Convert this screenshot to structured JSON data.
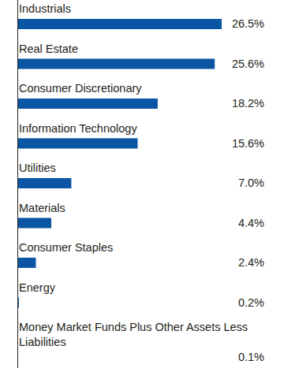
{
  "chart_data": {
    "type": "bar",
    "orientation": "horizontal",
    "categories": [
      "Industrials",
      "Real Estate",
      "Consumer Discretionary",
      "Information Technology",
      "Utilities",
      "Materials",
      "Consumer Staples",
      "Energy",
      "Money Market Funds Plus Other Assets Less Liabilities"
    ],
    "values": [
      26.5,
      25.6,
      18.2,
      15.6,
      7.0,
      4.4,
      2.4,
      0.2,
      0.1
    ],
    "value_labels": [
      "26.5%",
      "25.6%",
      "18.2%",
      "15.6%",
      "7.0%",
      "4.4%",
      "2.4%",
      "0.2%",
      "0.1%"
    ],
    "color": "#0b56a4",
    "xlim": [
      0,
      26.5
    ],
    "data_labels": true,
    "tick_labels": "y"
  }
}
